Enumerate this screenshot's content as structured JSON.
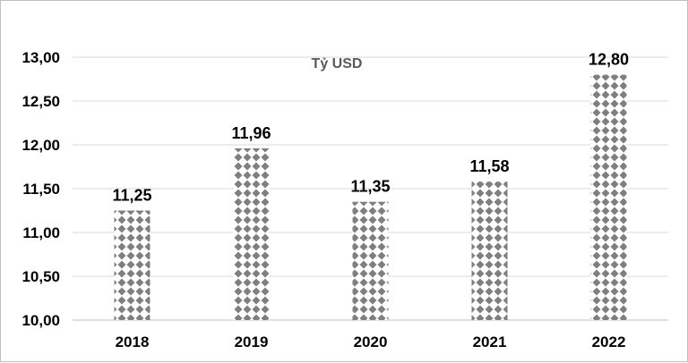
{
  "chart_data": {
    "type": "bar",
    "categories": [
      "2018",
      "2019",
      "2020",
      "2021",
      "2022"
    ],
    "values": [
      11.25,
      11.96,
      11.35,
      11.58,
      12.8
    ],
    "data_labels": [
      "11,25",
      "11,96",
      "11,35",
      "11,58",
      "12,80"
    ],
    "unit_label": "Tỷ USD",
    "ylim": [
      10.0,
      13.0
    ],
    "yticks": [
      10.0,
      10.5,
      11.0,
      11.5,
      12.0,
      12.5,
      13.0
    ],
    "ytick_labels": [
      "10,00",
      "10,50",
      "11,00",
      "11,50",
      "12,00",
      "12,50",
      "13,00"
    ],
    "grid": true,
    "legend": "none",
    "colors": {
      "bar_pattern": "#7f7f7f",
      "gridline": "#d9d9d9"
    }
  }
}
